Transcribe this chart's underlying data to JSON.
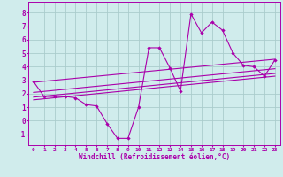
{
  "xlabel": "Windchill (Refroidissement éolien,°C)",
  "xlim": [
    -0.5,
    23.5
  ],
  "ylim": [
    -1.8,
    8.8
  ],
  "yticks": [
    -1,
    0,
    1,
    2,
    3,
    4,
    5,
    6,
    7,
    8
  ],
  "xticks": [
    0,
    1,
    2,
    3,
    4,
    5,
    6,
    7,
    8,
    9,
    10,
    11,
    12,
    13,
    14,
    15,
    16,
    17,
    18,
    19,
    20,
    21,
    22,
    23
  ],
  "data_x": [
    0,
    1,
    2,
    3,
    4,
    5,
    6,
    7,
    8,
    9,
    10,
    11,
    12,
    13,
    14,
    15,
    16,
    17,
    18,
    19,
    20,
    21,
    22,
    23
  ],
  "data_y": [
    2.9,
    1.8,
    1.8,
    1.8,
    1.7,
    1.2,
    1.1,
    -0.2,
    -1.3,
    -1.3,
    1.0,
    5.4,
    5.4,
    3.9,
    2.2,
    7.9,
    6.5,
    7.3,
    6.7,
    5.0,
    4.1,
    4.0,
    3.3,
    4.5
  ],
  "line_color": "#aa00aa",
  "bg_color": "#d0ecec",
  "grid_color": "#aacccc",
  "reg_lines": [
    {
      "x0": 0,
      "y0": 2.85,
      "x1": 23,
      "y1": 4.55
    },
    {
      "x0": 0,
      "y0": 2.1,
      "x1": 23,
      "y1": 3.85
    },
    {
      "x0": 0,
      "y0": 1.75,
      "x1": 23,
      "y1": 3.5
    },
    {
      "x0": 0,
      "y0": 1.55,
      "x1": 23,
      "y1": 3.3
    }
  ]
}
